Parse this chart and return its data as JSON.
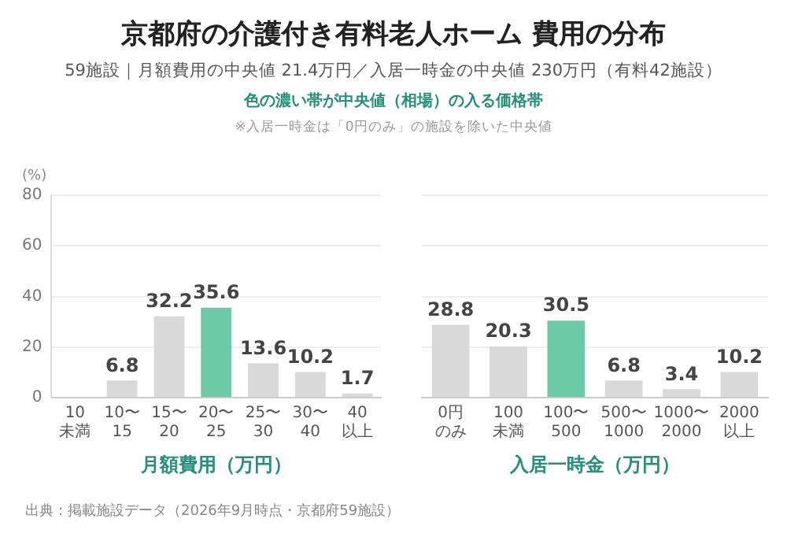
{
  "chart_data": [
    {
      "type": "bar",
      "title": "京都府の介護付き有料老人ホーム 費用の分布",
      "subtitle": "59施設｜月額費用の中央値 21.4万円／入居一時金の中央値 230万円（有料42施設）",
      "annotations": [
        "色の濃い帯が中央値（相場）の入る価格帯",
        "※入居一時金は「0円のみ」の施設を除いた中央値",
        "出典：掲載施設データ（2026年9月時点・京都府59施設）"
      ],
      "ylabel": "(%)",
      "xlabel": "月額費用（万円）",
      "categories": [
        "10\n未満",
        "10〜\n15",
        "15〜\n20",
        "20〜\n25",
        "25〜\n30",
        "30〜\n40",
        "40\n以上"
      ],
      "values": [
        0,
        6.8,
        32.2,
        35.6,
        13.6,
        10.2,
        1.7
      ],
      "value_labels": [
        null,
        "6.8",
        "32.2",
        "35.6",
        "13.6",
        "10.2",
        "1.7"
      ],
      "colors": [
        "#d9d9d9",
        "#d9d9d9",
        "#d9d9d9",
        "#6ccaa8",
        "#d9d9d9",
        "#d9d9d9",
        "#d9d9d9"
      ],
      "ylim": [
        0,
        80
      ],
      "yticks": [
        0,
        20,
        40,
        60,
        80
      ],
      "grid": "y",
      "legend": false
    },
    {
      "type": "bar",
      "xlabel": "入居一時金（万円）",
      "categories": [
        "0円のみ",
        "100\n未満",
        "100〜\n500",
        "500〜\n1000",
        "1000〜\n2000",
        "2000\n以上"
      ],
      "values": [
        28.8,
        20.3,
        30.5,
        6.8,
        3.4,
        10.2
      ],
      "data_labels": true,
      "colors": [
        "#d9d9d9",
        "#d9d9d9",
        "#6ccaa8",
        "#d9d9d9",
        "#d9d9d9",
        "#d9d9d9"
      ],
      "ylim": [
        0,
        80
      ],
      "yticks": [
        0,
        20,
        40,
        60,
        80
      ],
      "grid": "y",
      "legend": false,
      "tick_labels": "x"
    }
  ]
}
